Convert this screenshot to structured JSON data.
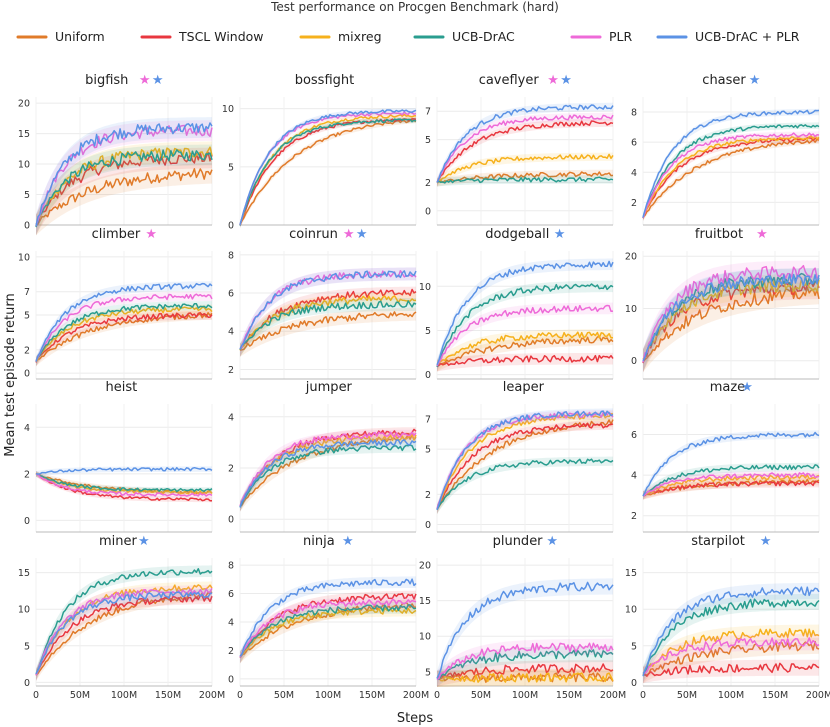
{
  "chart_data": {
    "type": "line",
    "title": "Test performance on Procgen Benchmark (hard)",
    "xlabel": "Steps",
    "ylabel": "Mean test episode return",
    "x_ticks": [
      "0",
      "50M",
      "100M",
      "150M",
      "200M"
    ],
    "xlim": [
      0,
      200
    ],
    "x_unit": "M steps",
    "legend_position": "top",
    "series_names": [
      "Uniform",
      "TSCL Window",
      "mixreg",
      "UCB-DrAC",
      "PLR",
      "UCB-DrAC + PLR"
    ],
    "colors": {
      "Uniform": "#e07b2a",
      "TSCL Window": "#e8373f",
      "mixreg": "#f6b11c",
      "UCB-DrAC": "#2a9d8f",
      "PLR": "#ee6ad8",
      "UCB-DrAC + PLR": "#5b92e5"
    },
    "star_colors": {
      "pink": "#ee6ad8",
      "blue": "#5b92e5"
    },
    "panels": [
      {
        "name": "bigfish",
        "stars": [
          "pink",
          "blue"
        ],
        "y_ticks": [
          0,
          5,
          10,
          15,
          20
        ],
        "ylim": [
          0,
          21
        ],
        "start": 0,
        "final": {
          "Uniform": 8.5,
          "TSCL Window": 11,
          "mixreg": 12,
          "UCB-DrAC": 11.5,
          "PLR": 15.5,
          "UCB-DrAC + PLR": 16
        }
      },
      {
        "name": "bossfight",
        "stars": [],
        "y_ticks": [
          0,
          5,
          10
        ],
        "ylim": [
          0,
          11
        ],
        "start": 0,
        "final": {
          "Uniform": 9,
          "TSCL Window": 9.1,
          "mixreg": 9.4,
          "UCB-DrAC": 9,
          "PLR": 9.6,
          "UCB-DrAC + PLR": 9.8
        }
      },
      {
        "name": "caveflyer",
        "stars": [
          "pink",
          "blue"
        ],
        "y_ticks": [
          0,
          2,
          5,
          7
        ],
        "ylim": [
          -1,
          8
        ],
        "start": 2,
        "final": {
          "Uniform": 2.6,
          "TSCL Window": 6.2,
          "mixreg": 3.8,
          "UCB-DrAC": 2.2,
          "PLR": 6.6,
          "UCB-DrAC + PLR": 7.3
        }
      },
      {
        "name": "chaser",
        "stars": [
          "blue"
        ],
        "y_ticks": [
          2,
          4,
          6,
          8
        ],
        "ylim": [
          0.5,
          9
        ],
        "start": 1,
        "final": {
          "Uniform": 6.1,
          "TSCL Window": 6.2,
          "mixreg": 6.3,
          "UCB-DrAC": 7.1,
          "PLR": 6.5,
          "UCB-DrAC + PLR": 8.0
        }
      },
      {
        "name": "climber",
        "stars": [
          "pink"
        ],
        "y_ticks": [
          0,
          2,
          5,
          7,
          10
        ],
        "ylim": [
          -0.5,
          10.5
        ],
        "start": 1,
        "final": {
          "Uniform": 5.0,
          "TSCL Window": 5.0,
          "mixreg": 5.5,
          "UCB-DrAC": 5.8,
          "PLR": 6.6,
          "UCB-DrAC + PLR": 7.5
        }
      },
      {
        "name": "coinrun",
        "stars": [
          "pink",
          "blue"
        ],
        "y_ticks": [
          2,
          4,
          6,
          8
        ],
        "ylim": [
          1.5,
          8.2
        ],
        "start": 3,
        "final": {
          "Uniform": 4.9,
          "TSCL Window": 6.0,
          "mixreg": 5.7,
          "UCB-DrAC": 5.4,
          "PLR": 7.0,
          "UCB-DrAC + PLR": 7.0
        }
      },
      {
        "name": "dodgeball",
        "stars": [
          "blue"
        ],
        "y_ticks": [
          0,
          5,
          10
        ],
        "ylim": [
          -0.5,
          14
        ],
        "start": 1,
        "final": {
          "Uniform": 4.0,
          "TSCL Window": 1.8,
          "mixreg": 4.5,
          "UCB-DrAC": 10.0,
          "PLR": 7.5,
          "UCB-DrAC + PLR": 12.5
        }
      },
      {
        "name": "fruitbot",
        "stars": [
          "pink"
        ],
        "y_ticks": [
          0,
          10,
          20
        ],
        "ylim": [
          -3.5,
          21
        ],
        "start": 0,
        "final": {
          "Uniform": 13.0,
          "TSCL Window": 14.0,
          "mixreg": 14.5,
          "UCB-DrAC": 15.5,
          "PLR": 17.0,
          "UCB-DrAC + PLR": 15.5
        }
      },
      {
        "name": "heist",
        "stars": [],
        "y_ticks": [
          0,
          2,
          4
        ],
        "ylim": [
          -0.5,
          5
        ],
        "start": 2,
        "final": {
          "Uniform": 1.2,
          "TSCL Window": 0.9,
          "mixreg": 1.2,
          "UCB-DrAC": 1.3,
          "PLR": 1.1,
          "UCB-DrAC + PLR": 2.2
        }
      },
      {
        "name": "jumper",
        "stars": [],
        "y_ticks": [
          0,
          2,
          4
        ],
        "ylim": [
          -0.5,
          4.5
        ],
        "start": 0.5,
        "final": {
          "Uniform": 3.2,
          "TSCL Window": 3.4,
          "mixreg": 3.2,
          "UCB-DrAC": 2.8,
          "PLR": 3.3,
          "UCB-DrAC + PLR": 3.0
        }
      },
      {
        "name": "leaper",
        "stars": [],
        "y_ticks": [
          0,
          2,
          5,
          7
        ],
        "ylim": [
          -0.5,
          8
        ],
        "start": 1,
        "final": {
          "Uniform": 6.8,
          "TSCL Window": 6.6,
          "mixreg": 7.2,
          "UCB-DrAC": 4.2,
          "PLR": 7.3,
          "UCB-DrAC + PLR": 7.4
        }
      },
      {
        "name": "maze",
        "stars": [
          "blue"
        ],
        "y_ticks": [
          2,
          4,
          6
        ],
        "ylim": [
          1.2,
          7.5
        ],
        "start": 3,
        "final": {
          "Uniform": 3.7,
          "TSCL Window": 3.6,
          "mixreg": 3.9,
          "UCB-DrAC": 4.4,
          "PLR": 4.0,
          "UCB-DrAC + PLR": 6.0
        }
      },
      {
        "name": "miner",
        "stars": [
          "blue"
        ],
        "y_ticks": [
          0,
          5,
          10,
          15
        ],
        "ylim": [
          -0.5,
          17
        ],
        "start": 1,
        "final": {
          "Uniform": 12.0,
          "TSCL Window": 11.5,
          "mixreg": 13.0,
          "UCB-DrAC": 15.2,
          "PLR": 12.5,
          "UCB-DrAC + PLR": 12.0
        }
      },
      {
        "name": "ninja",
        "stars": [
          "blue"
        ],
        "y_ticks": [
          0,
          2,
          4,
          6,
          8
        ],
        "ylim": [
          -0.5,
          8.5
        ],
        "start": 1.5,
        "final": {
          "Uniform": 5.2,
          "TSCL Window": 5.8,
          "mixreg": 4.8,
          "UCB-DrAC": 5.0,
          "PLR": 5.4,
          "UCB-DrAC + PLR": 6.8
        }
      },
      {
        "name": "plunder",
        "stars": [
          "blue"
        ],
        "y_ticks": [
          5,
          10,
          15,
          20
        ],
        "ylim": [
          3,
          21
        ],
        "start": 4,
        "final": {
          "Uniform": 4.2,
          "TSCL Window": 5.5,
          "mixreg": 4.2,
          "UCB-DrAC": 7.5,
          "PLR": 8.5,
          "UCB-DrAC + PLR": 17.0
        }
      },
      {
        "name": "starpilot",
        "stars": [
          "blue"
        ],
        "y_ticks": [
          0,
          5,
          10,
          15
        ],
        "ylim": [
          -0.5,
          17
        ],
        "start": 1,
        "final": {
          "Uniform": 5.0,
          "TSCL Window": 2.0,
          "mixreg": 6.8,
          "UCB-DrAC": 11.0,
          "PLR": 5.5,
          "UCB-DrAC + PLR": 12.5
        }
      }
    ]
  }
}
